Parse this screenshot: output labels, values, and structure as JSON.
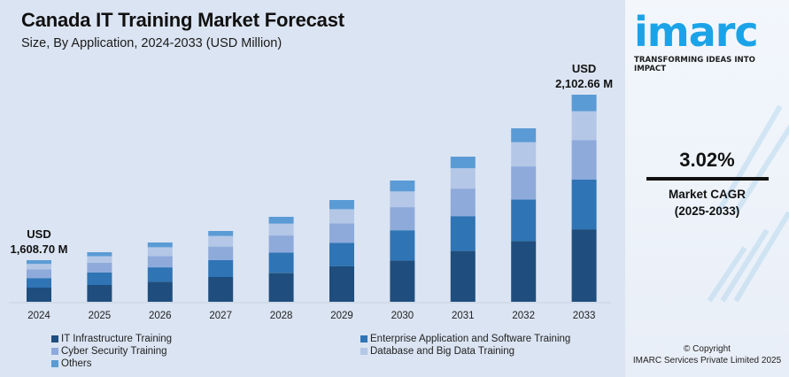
{
  "header": {
    "title": "Canada IT Training Market Forecast",
    "subtitle": "Size, By Application, 2024-2033 (USD Million)"
  },
  "chart_data": {
    "type": "bar",
    "stacked": true,
    "title": "Canada IT Training Market Forecast",
    "subtitle": "Size, By Application, 2024-2033 (USD Million)",
    "xlabel": "",
    "ylabel": "USD Million",
    "axis_visible": false,
    "grid": false,
    "ylim": [
      1484.5,
      2102.66
    ],
    "categories": [
      "2024",
      "2025",
      "2026",
      "2027",
      "2028",
      "2029",
      "2030",
      "2031",
      "2032",
      "2033"
    ],
    "totals": [
      1608.7,
      1632.4,
      1661.5,
      1695.8,
      1738.1,
      1788.3,
      1846.4,
      1917.7,
      2002.2,
      2102.66
    ],
    "series": [
      {
        "name": "IT Infrastructure Training",
        "color": "#1f4e7e",
        "share": [
          0.34,
          0.34,
          0.34,
          0.35,
          0.34,
          0.35,
          0.34,
          0.35,
          0.35,
          0.35
        ]
      },
      {
        "name": "Enterprise Application and Software Training",
        "color": "#2f74b5",
        "share": [
          0.23,
          0.25,
          0.24,
          0.24,
          0.24,
          0.23,
          0.25,
          0.24,
          0.24,
          0.24
        ]
      },
      {
        "name": "Cyber Security Training",
        "color": "#8eaadb",
        "share": [
          0.21,
          0.2,
          0.19,
          0.19,
          0.2,
          0.19,
          0.19,
          0.19,
          0.19,
          0.19
        ]
      },
      {
        "name": "Database and Big Data Training",
        "color": "#b4c7e7",
        "share": [
          0.13,
          0.13,
          0.15,
          0.15,
          0.14,
          0.14,
          0.13,
          0.14,
          0.14,
          0.14
        ]
      },
      {
        "name": "Others",
        "color": "#5b9bd5",
        "share": [
          0.09,
          0.08,
          0.08,
          0.07,
          0.08,
          0.09,
          0.09,
          0.08,
          0.08,
          0.08
        ]
      }
    ],
    "annotations": [
      {
        "category": "2024",
        "line1": "USD",
        "line2": "1,608.70 M"
      },
      {
        "category": "2033",
        "line1": "USD",
        "line2": "2,102.66 M"
      }
    ],
    "legend_position": "bottom"
  },
  "legend": {
    "items": [
      {
        "label": "IT Infrastructure Training",
        "color": "#1f4e7e"
      },
      {
        "label": "Cyber Security Training",
        "color": "#8eaadb"
      },
      {
        "label": "Others",
        "color": "#5b9bd5"
      },
      {
        "label": "Enterprise Application and Software Training",
        "color": "#2f74b5"
      },
      {
        "label": "Database and Big Data Training",
        "color": "#b4c7e7"
      }
    ]
  },
  "sidebar": {
    "logo_text": "imarc",
    "tagline": "TRANSFORMING IDEAS INTO IMPACT",
    "cagr_value": "3.02%",
    "cagr_label": "Market CAGR",
    "cagr_period": "(2025-2033)",
    "copyright_line1": "© Copyright",
    "copyright_line2": "IMARC Services Private Limited 2025",
    "brand_color": "#1ba3e8"
  }
}
